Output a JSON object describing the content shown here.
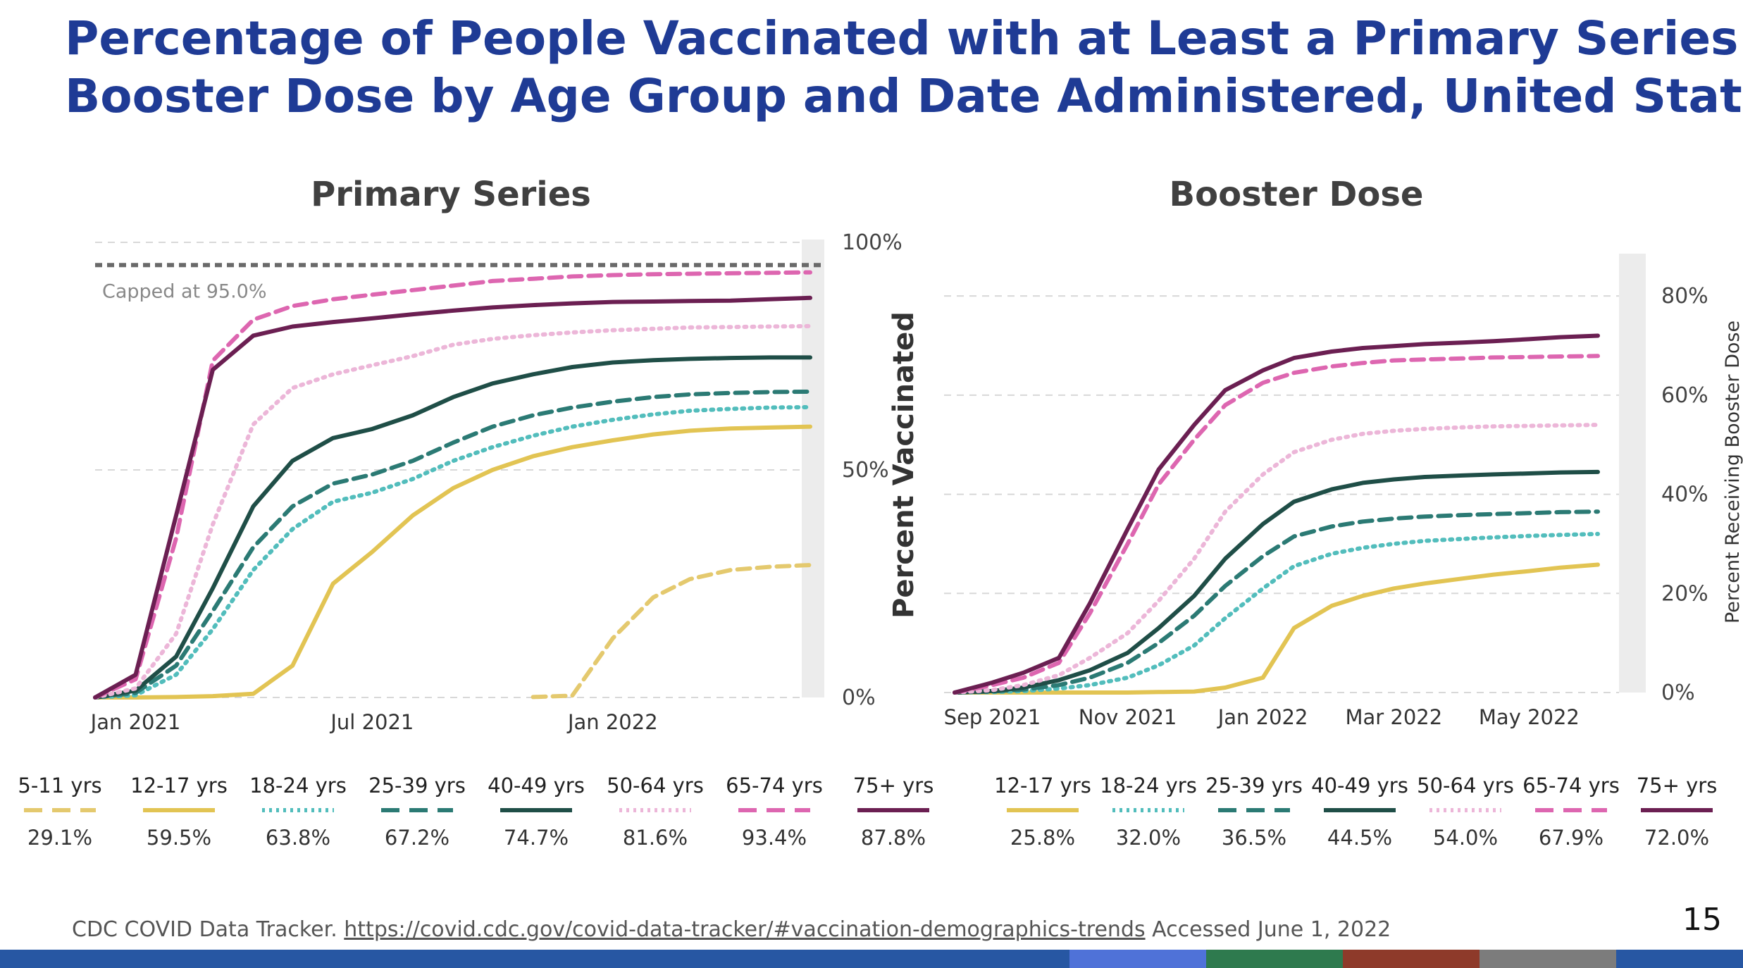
{
  "title_line1": "Percentage of People Vaccinated with at Least a Primary Series or",
  "title_line2": "Booster Dose by Age Group and Date Administered, United States",
  "colors": {
    "title": "#1f3b95",
    "5-11": "#e4c96e",
    "12-17": "#e2c453",
    "18-24": "#52bdbc",
    "25-39": "#2b7a74",
    "40-49": "#1f4e47",
    "50-64": "#ecb6d8",
    "65-74": "#dd66b0",
    "75+": "#6b1f52",
    "cap": "#6a6a6a"
  },
  "chart_data": [
    {
      "type": "line",
      "title": "Primary Series",
      "ylabel": "Percent Vaccinated",
      "ylim": [
        0,
        100
      ],
      "yticks": [
        "0%",
        "50%",
        "100%"
      ],
      "xlabels": [
        "Jan 2021",
        "Jul 2021",
        "Jan 2022"
      ],
      "x_dates": [
        "2020-12-01",
        "2021-01-01",
        "2021-02-01",
        "2021-03-01",
        "2021-04-01",
        "2021-05-01",
        "2021-06-01",
        "2021-07-01",
        "2021-08-01",
        "2021-09-01",
        "2021-10-01",
        "2021-11-01",
        "2021-12-01",
        "2022-01-01",
        "2022-02-01",
        "2022-03-01",
        "2022-04-01",
        "2022-05-01",
        "2022-06-01"
      ],
      "annotation": "Capped at 95.0%",
      "cap": 95.0,
      "series": [
        {
          "name": "5-11 yrs",
          "key": "5-11",
          "dash": "dash",
          "values": [
            null,
            null,
            null,
            null,
            null,
            null,
            null,
            null,
            null,
            null,
            null,
            0.1,
            0.4,
            13,
            22,
            26,
            28,
            28.7,
            29.1
          ]
        },
        {
          "name": "12-17 yrs",
          "key": "12-17",
          "dash": "solid",
          "values": [
            0,
            0,
            0.1,
            0.3,
            0.8,
            7,
            25,
            32,
            40,
            46,
            50,
            53,
            55,
            56.5,
            57.8,
            58.6,
            59.1,
            59.3,
            59.5
          ]
        },
        {
          "name": "18-24 yrs",
          "key": "18-24",
          "dash": "dot",
          "values": [
            0,
            0.5,
            5,
            15,
            28,
            37,
            43,
            45,
            48,
            52,
            55,
            57.5,
            59.5,
            61,
            62.2,
            63,
            63.4,
            63.7,
            63.8
          ]
        },
        {
          "name": "25-39 yrs",
          "key": "25-39",
          "dash": "dash",
          "values": [
            0,
            1,
            7,
            19,
            33,
            42,
            47,
            49,
            52,
            56,
            59.5,
            62,
            63.7,
            65,
            66,
            66.6,
            66.9,
            67.1,
            67.2
          ]
        },
        {
          "name": "40-49 yrs",
          "key": "40-49",
          "dash": "solid",
          "values": [
            0,
            1.5,
            9,
            24,
            42,
            52,
            57,
            59,
            62,
            66,
            69,
            71,
            72.6,
            73.6,
            74.1,
            74.4,
            74.6,
            74.7,
            74.7
          ]
        },
        {
          "name": "50-64 yrs",
          "key": "50-64",
          "dash": "dot",
          "values": [
            0,
            2,
            14,
            38,
            60,
            68,
            71,
            73,
            75,
            77.5,
            78.8,
            79.6,
            80.2,
            80.7,
            81,
            81.3,
            81.4,
            81.5,
            81.6
          ]
        },
        {
          "name": "65-74 yrs",
          "key": "65-74",
          "dash": "dash",
          "values": [
            0,
            4,
            35,
            74,
            83,
            86,
            87.5,
            88.5,
            89.5,
            90.5,
            91.5,
            92,
            92.5,
            92.8,
            93,
            93.1,
            93.2,
            93.3,
            93.4
          ]
        },
        {
          "name": "75+ yrs",
          "key": "75+",
          "dash": "solid",
          "values": [
            0,
            5,
            40,
            72,
            79.5,
            81.5,
            82.5,
            83.3,
            84.2,
            85,
            85.7,
            86.2,
            86.6,
            86.9,
            87,
            87.1,
            87.2,
            87.5,
            87.8
          ]
        }
      ]
    },
    {
      "type": "line",
      "title": "Booster Dose",
      "ylabel": "Percent Receiving Booster Dose",
      "ylim": [
        0,
        85
      ],
      "yticks": [
        "0%",
        "20%",
        "40%",
        "60%",
        "80%"
      ],
      "xlabels": [
        "Sep 2021",
        "Nov 2021",
        "Jan 2022",
        "Mar 2022",
        "May 2022"
      ],
      "x_dates": [
        "2021-08-15",
        "2021-09-01",
        "2021-09-15",
        "2021-10-01",
        "2021-10-15",
        "2021-11-01",
        "2021-11-15",
        "2021-12-01",
        "2021-12-15",
        "2022-01-01",
        "2022-01-15",
        "2022-02-01",
        "2022-02-15",
        "2022-03-01",
        "2022-03-15",
        "2022-04-01",
        "2022-04-15",
        "2022-05-01",
        "2022-05-15",
        "2022-06-01"
      ],
      "series": [
        {
          "name": "12-17 yrs",
          "key": "12-17",
          "dash": "solid",
          "values": [
            0,
            0,
            0,
            0,
            0,
            0,
            0.1,
            0.2,
            1,
            3,
            13,
            17.5,
            19.5,
            21,
            22,
            23,
            23.8,
            24.5,
            25.2,
            25.8
          ]
        },
        {
          "name": "18-24 yrs",
          "key": "18-24",
          "dash": "dot",
          "values": [
            0,
            0.1,
            0.3,
            0.8,
            1.5,
            3,
            5.5,
            9.5,
            15,
            21,
            25.5,
            28,
            29.2,
            30,
            30.6,
            31,
            31.3,
            31.6,
            31.8,
            32.0
          ]
        },
        {
          "name": "25-39 yrs",
          "key": "25-39",
          "dash": "dash",
          "values": [
            0,
            0.2,
            0.6,
            1.5,
            3,
            6,
            10,
            15.5,
            21.5,
            27.5,
            31.5,
            33.5,
            34.5,
            35.1,
            35.5,
            35.8,
            36,
            36.2,
            36.4,
            36.5
          ]
        },
        {
          "name": "40-49 yrs",
          "key": "40-49",
          "dash": "solid",
          "values": [
            0,
            0.3,
            1,
            2.5,
            4.5,
            8,
            13,
            19.5,
            27,
            34,
            38.5,
            41,
            42.3,
            43,
            43.5,
            43.8,
            44,
            44.2,
            44.4,
            44.5
          ]
        },
        {
          "name": "50-64 yrs",
          "key": "50-64",
          "dash": "dot",
          "values": [
            0,
            0.5,
            1.5,
            3.5,
            7,
            12,
            18.5,
            27,
            36.5,
            44,
            48.5,
            51,
            52.2,
            52.8,
            53.2,
            53.5,
            53.7,
            53.8,
            53.9,
            54.0
          ]
        },
        {
          "name": "65-74 yrs",
          "key": "65-74",
          "dash": "dash",
          "values": [
            0,
            1.5,
            3,
            6,
            16,
            30,
            42,
            51,
            58,
            62.5,
            64.5,
            65.8,
            66.5,
            67,
            67.2,
            67.4,
            67.6,
            67.7,
            67.8,
            67.9
          ]
        },
        {
          "name": "75+ yrs",
          "key": "75+",
          "dash": "solid",
          "values": [
            0,
            2,
            4,
            7,
            18,
            33,
            45,
            54,
            61,
            65,
            67.5,
            68.8,
            69.5,
            69.9,
            70.3,
            70.6,
            70.9,
            71.3,
            71.7,
            72.0
          ]
        }
      ]
    }
  ],
  "legend_primary": [
    {
      "label": "5-11 yrs",
      "value": "29.1%",
      "key": "5-11",
      "dash": "dash"
    },
    {
      "label": "12-17 yrs",
      "value": "59.5%",
      "key": "12-17",
      "dash": "solid"
    },
    {
      "label": "18-24 yrs",
      "value": "63.8%",
      "key": "18-24",
      "dash": "dot"
    },
    {
      "label": "25-39 yrs",
      "value": "67.2%",
      "key": "25-39",
      "dash": "dash"
    },
    {
      "label": "40-49 yrs",
      "value": "74.7%",
      "key": "40-49",
      "dash": "solid"
    },
    {
      "label": "50-64 yrs",
      "value": "81.6%",
      "key": "50-64",
      "dash": "dot"
    },
    {
      "label": "65-74 yrs",
      "value": "93.4%",
      "key": "65-74",
      "dash": "dash"
    },
    {
      "label": "75+ yrs",
      "value": "87.8%",
      "key": "75+",
      "dash": "solid"
    }
  ],
  "legend_booster": [
    {
      "label": "12-17 yrs",
      "value": "25.8%",
      "key": "12-17",
      "dash": "solid"
    },
    {
      "label": "18-24 yrs",
      "value": "32.0%",
      "key": "18-24",
      "dash": "dot"
    },
    {
      "label": "25-39 yrs",
      "value": "36.5%",
      "key": "25-39",
      "dash": "dash"
    },
    {
      "label": "40-49 yrs",
      "value": "44.5%",
      "key": "40-49",
      "dash": "solid"
    },
    {
      "label": "50-64 yrs",
      "value": "54.0%",
      "key": "50-64",
      "dash": "dot"
    },
    {
      "label": "65-74 yrs",
      "value": "67.9%",
      "key": "65-74",
      "dash": "dash"
    },
    {
      "label": "75+ yrs",
      "value": "72.0%",
      "key": "75+",
      "dash": "solid"
    }
  ],
  "source": {
    "prefix": "CDC COVID Data Tracker. ",
    "link": "https://covid.cdc.gov/covid-data-tracker/#vaccination-demographics-trends",
    "suffix": " Accessed June 1, 2022"
  },
  "page_number": "15",
  "bottom_bar_colors": [
    "#2757a3",
    "#4f72d8",
    "#2e7a4e",
    "#8e3a2a",
    "#7c7c7c",
    "#2757a3"
  ]
}
